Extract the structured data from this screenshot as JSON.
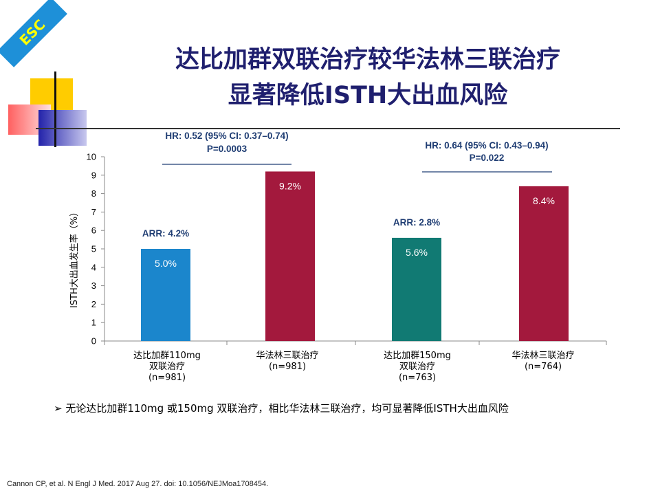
{
  "badge": {
    "text": "ESC"
  },
  "title": {
    "line1": "达比加群双联治疗较华法林三联治疗",
    "line2": "显著降低ISTH大出血风险"
  },
  "chart_data": {
    "type": "bar",
    "ylabel": "ISTH大出血发生率（%）",
    "ylim": [
      0,
      10
    ],
    "yticks": [
      "0",
      "1",
      "2",
      "3",
      "4",
      "5",
      "6",
      "7",
      "8",
      "9",
      "10"
    ],
    "categories": [
      [
        "达比加群110mg",
        "双联治疗",
        "(n=981)"
      ],
      [
        "华法林三联治疗",
        "(n=981)"
      ],
      [
        "达比加群150mg",
        "双联治疗",
        "(n=763)"
      ],
      [
        "华法林三联治疗",
        "(n=764)"
      ]
    ],
    "values": [
      5.0,
      9.2,
      5.6,
      8.4
    ],
    "value_labels": [
      "5.0%",
      "9.2%",
      "5.6%",
      "8.4%"
    ],
    "colors": [
      "#1b86cc",
      "#a3193d",
      "#117a73",
      "#a3193d"
    ],
    "annotations": {
      "arr": [
        "ARR: 4.2%",
        "ARR: 2.8%"
      ],
      "comparison1": {
        "hr": "HR: 0.52 (95% CI: 0.37–0.74)",
        "p": "P=0.0003"
      },
      "comparison2": {
        "hr": "HR: 0.64 (95% CI: 0.43–0.94)",
        "p": "P=0.022"
      }
    }
  },
  "bullet": {
    "marker": "➢",
    "text": "无论达比加群110mg 或150mg 双联治疗，相比华法林三联治疗，均可显著降低ISTH大出血风险"
  },
  "citation": "Cannon CP, et al. N Engl J Med. 2017 Aug 27. doi: 10.1056/NEJMoa1708454."
}
